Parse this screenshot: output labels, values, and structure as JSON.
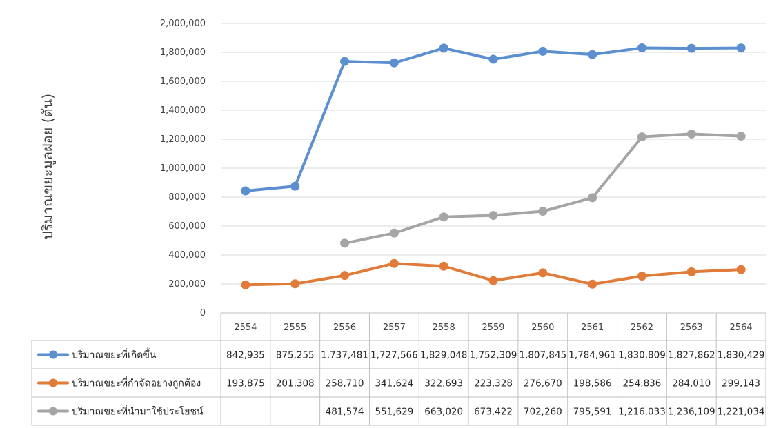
{
  "chart_data": {
    "type": "line",
    "ylabel": "ปริมาณขยะมูลฝอย (ตัน)",
    "ylim": [
      0,
      2000000
    ],
    "y_ticks": [
      "0",
      "200,000",
      "400,000",
      "600,000",
      "800,000",
      "1,000,000",
      "1,200,000",
      "1,400,000",
      "1,600,000",
      "1,800,000",
      "2,000,000"
    ],
    "grid": true,
    "legend_placement": "data-table",
    "categories": [
      "2554",
      "2555",
      "2556",
      "2557",
      "2558",
      "2559",
      "2560",
      "2561",
      "2562",
      "2563",
      "2564"
    ],
    "series": [
      {
        "name": "ปริมาณขยะที่เกิดขึ้น",
        "color": "#5B8FD0",
        "values": [
          842935,
          875255,
          1737481,
          1727566,
          1829048,
          1752309,
          1807845,
          1784961,
          1830809,
          1827862,
          1830429
        ],
        "labels": [
          "842,935",
          "875,255",
          "1,737,481",
          "1,727,566",
          "1,829,048",
          "1,752,309",
          "1,807,845",
          "1,784,961",
          "1,830,809",
          "1,827,862",
          "1,830,429"
        ]
      },
      {
        "name": "ปริมาณขยะที่กำจัดอย่างถูกต้อง",
        "color": "#E07B39",
        "values": [
          193875,
          201308,
          258710,
          341624,
          322693,
          223328,
          276670,
          198586,
          254836,
          284010,
          299143
        ],
        "labels": [
          "193,875",
          "201,308",
          "258,710",
          "341,624",
          "322,693",
          "223,328",
          "276,670",
          "198,586",
          "254,836",
          "284,010",
          "299,143"
        ]
      },
      {
        "name": "ปริมาณขยะที่นำมาใช้ประโยชน์",
        "color": "#A5A5A5",
        "values": [
          null,
          null,
          481574,
          551629,
          663020,
          673422,
          702260,
          795591,
          1216033,
          1236109,
          1221034
        ],
        "labels": [
          "",
          "",
          "481,574",
          "551,629",
          "663,020",
          "673,422",
          "702,260",
          "795,591",
          "1,216,033",
          "1,236,109",
          "1,221,034"
        ]
      }
    ]
  }
}
